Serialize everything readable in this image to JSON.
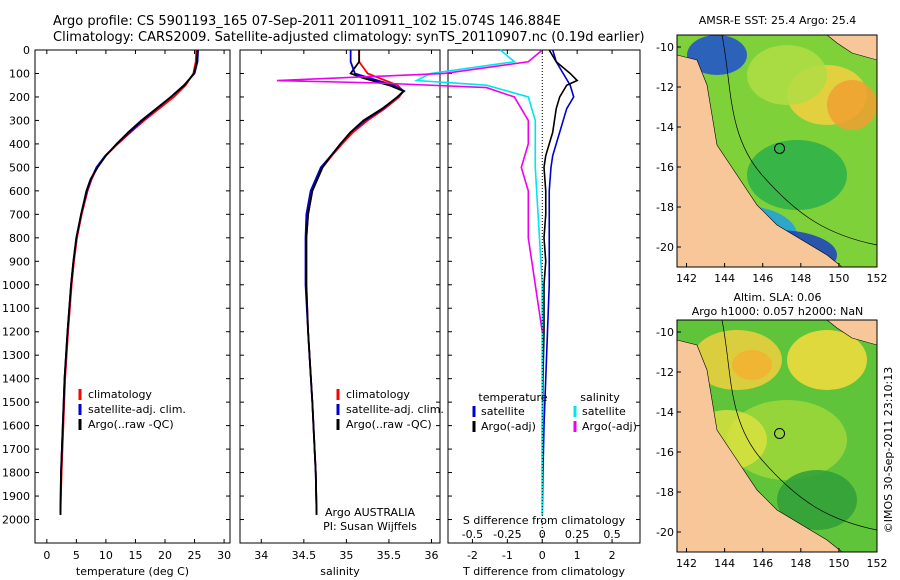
{
  "header": {
    "line1": "Argo profile: CS 5901193_165 07-Sep-2011 20110911_102 15.074S 146.884E",
    "line2": "Climatology: CARS2009. Satellite-adjusted climatology: synTS_20110907.nc (0.19d earlier)"
  },
  "maps": {
    "top_title": "AMSR-E SST: 25.4 Argo: 25.4",
    "bottom_title1": "Altim. SLA: 0.06",
    "bottom_title2": "Argo h1000: 0.057 h2000: NaN",
    "lat_ticks": [
      "-10",
      "-12",
      "-14",
      "-16",
      "-18",
      "-20"
    ],
    "lon_ticks": [
      "142",
      "144",
      "146",
      "148",
      "150",
      "152"
    ],
    "side_label": "©IMOS 30-Sep-2011 23:10:13"
  },
  "colors": {
    "climatology": "#ff0000",
    "satellite": "#0000cc",
    "argo": "#000000",
    "sat_salinity": "#00e5ee",
    "argo_salinity": "#ee00ee",
    "land": "#f7c79a"
  },
  "chart_data": [
    {
      "type": "line",
      "ylabel": "",
      "xlabel": "temperature (deg C)",
      "xlim": [
        -2,
        31
      ],
      "ylim": [
        2100,
        0
      ],
      "x_ticks": [
        "0",
        "5",
        "10",
        "15",
        "20",
        "25",
        "30"
      ],
      "y_ticks": [
        "0",
        "100",
        "200",
        "300",
        "400",
        "500",
        "600",
        "700",
        "800",
        "900",
        "1000",
        "1100",
        "1200",
        "1300",
        "1400",
        "1500",
        "1600",
        "1700",
        "1800",
        "1900",
        "2000"
      ],
      "legend": [
        "climatology",
        "satellite-adj. clim.",
        "Argo(..raw -QC)"
      ],
      "series": [
        {
          "name": "climatology",
          "depth": [
            0,
            50,
            100,
            150,
            200,
            250,
            300,
            350,
            400,
            450,
            500,
            550,
            600,
            700,
            800,
            900,
            1000,
            1200,
            1400,
            1600,
            1800,
            1980
          ],
          "values": [
            25.3,
            25.2,
            24.8,
            23.5,
            21.5,
            19.0,
            16.5,
            14.2,
            12.0,
            10.0,
            8.5,
            7.6,
            6.9,
            5.9,
            5.1,
            4.6,
            4.2,
            3.6,
            3.1,
            2.8,
            2.5,
            2.3
          ]
        },
        {
          "name": "satellite-adj. clim.",
          "depth": [
            0,
            50,
            100,
            150,
            200,
            250,
            300,
            350,
            400,
            450,
            500,
            550,
            600,
            700,
            800,
            900,
            1000,
            1200,
            1400,
            1600,
            1800,
            1980
          ],
          "values": [
            25.6,
            25.5,
            25.0,
            23.2,
            21.0,
            18.6,
            16.2,
            14.0,
            11.9,
            9.9,
            8.4,
            7.5,
            6.8,
            5.8,
            5.0,
            4.5,
            4.1,
            3.5,
            3.0,
            2.7,
            2.4,
            2.3
          ]
        },
        {
          "name": "Argo(..raw -QC)",
          "depth": [
            0,
            50,
            100,
            150,
            200,
            250,
            300,
            350,
            400,
            450,
            500,
            550,
            600,
            700,
            800,
            900,
            1000,
            1200,
            1400,
            1600,
            1800,
            1980
          ],
          "values": [
            25.5,
            25.4,
            24.9,
            23.3,
            21.0,
            18.5,
            16.0,
            13.8,
            11.8,
            10.0,
            8.6,
            7.4,
            6.7,
            5.8,
            5.0,
            4.5,
            4.1,
            3.5,
            3.0,
            2.7,
            2.4,
            2.3
          ]
        }
      ]
    },
    {
      "type": "line",
      "xlabel": "salinity",
      "xlim": [
        33.75,
        36.1
      ],
      "ylim": [
        2100,
        0
      ],
      "x_ticks": [
        "34",
        "34.5",
        "35",
        "35.5",
        "36"
      ],
      "legend": [
        "climatology",
        "satellite-adj. clim.",
        "Argo(..raw -QC)"
      ],
      "annotation1": "Argo AUSTRALIA",
      "annotation2": "PI: Susan Wijffels",
      "series": [
        {
          "name": "climatology",
          "depth": [
            0,
            50,
            100,
            150,
            175,
            200,
            250,
            300,
            350,
            400,
            450,
            500,
            600,
            700,
            800,
            1000,
            1200,
            1500,
            1800,
            1980
          ],
          "values": [
            35.15,
            35.15,
            35.25,
            35.6,
            35.67,
            35.62,
            35.45,
            35.25,
            35.08,
            34.95,
            34.83,
            34.72,
            34.6,
            34.55,
            34.53,
            34.53,
            34.55,
            34.6,
            34.64,
            34.65
          ]
        },
        {
          "name": "satellite-adj. clim.",
          "depth": [
            0,
            50,
            100,
            150,
            175,
            200,
            250,
            300,
            350,
            400,
            450,
            500,
            600,
            700,
            800,
            1000,
            1200,
            1500,
            1800,
            1980
          ],
          "values": [
            35.05,
            35.05,
            35.1,
            35.55,
            35.68,
            35.6,
            35.43,
            35.22,
            35.05,
            34.93,
            34.82,
            34.7,
            34.58,
            34.53,
            34.52,
            34.52,
            34.55,
            34.6,
            34.64,
            34.65
          ]
        },
        {
          "name": "Argo(..raw -QC)",
          "depth": [
            0,
            50,
            100,
            120,
            150,
            175,
            200,
            250,
            300,
            350,
            400,
            450,
            500,
            600,
            700,
            800,
            1000,
            1200,
            1500,
            1800,
            1980
          ],
          "values": [
            35.15,
            35.15,
            35.05,
            35.2,
            35.5,
            35.67,
            35.6,
            35.42,
            35.2,
            35.05,
            34.93,
            34.82,
            34.72,
            34.6,
            34.55,
            34.53,
            34.53,
            34.55,
            34.6,
            34.64,
            34.65
          ]
        }
      ]
    },
    {
      "type": "line",
      "xlabel_top": "S difference from climatology",
      "xlabel": "T difference from climatology",
      "xlim": [
        -2.7,
        2.8
      ],
      "ylim": [
        2100,
        0
      ],
      "x_ticks": [
        "-2",
        "-1",
        "0",
        "1",
        "2"
      ],
      "x_ticks_top": [
        "-0.5",
        "-0.25",
        "0",
        "0.25",
        "0.5"
      ],
      "legend_left_title": "temperature",
      "legend_right_title": "salinity",
      "legend_left": [
        "satellite",
        "Argo(-adj)"
      ],
      "legend_right": [
        "satellite",
        "Argo(-adj)"
      ],
      "series": [
        {
          "name": "temperature satellite",
          "depth": [
            0,
            50,
            100,
            150,
            200,
            250,
            300,
            350,
            400,
            450,
            500,
            600,
            700,
            800,
            900,
            1000,
            1200,
            1400,
            1600,
            1800,
            1980
          ],
          "values": [
            0.3,
            0.4,
            0.6,
            0.8,
            0.9,
            0.7,
            0.6,
            0.5,
            0.4,
            0.3,
            0.25,
            0.2,
            0.2,
            0.2,
            0.2,
            0.2,
            0.15,
            0.1,
            0.05,
            0.02,
            0.0
          ]
        },
        {
          "name": "temperature Argo(-adj)",
          "depth": [
            0,
            50,
            100,
            130,
            150,
            200,
            250,
            300,
            350,
            400,
            450,
            500,
            600,
            700,
            800,
            900,
            1000,
            1200,
            1400,
            1600,
            1800,
            1980
          ],
          "values": [
            0.2,
            0.4,
            0.8,
            1.0,
            0.7,
            0.5,
            0.4,
            0.35,
            0.3,
            0.2,
            0.1,
            0.05,
            0.1,
            0.1,
            0.05,
            0.1,
            0.05,
            0.05,
            0.02,
            0.0,
            0.0,
            0.0
          ]
        },
        {
          "name": "salinity satellite",
          "depth": [
            0,
            50,
            100,
            130,
            150,
            200,
            300,
            400,
            500,
            700,
            1000,
            1200,
            1400,
            1600,
            1800,
            1980
          ],
          "values": [
            -0.3,
            -0.2,
            -0.8,
            -0.9,
            -0.4,
            -0.1,
            -0.05,
            -0.05,
            -0.05,
            -0.03,
            0.0,
            0.0,
            0.0,
            0.0,
            0.0,
            0.0
          ]
        },
        {
          "name": "salinity Argo(-adj)",
          "depth": [
            0,
            50,
            100,
            130,
            140,
            160,
            200,
            300,
            400,
            500,
            600,
            700,
            800,
            1000,
            1200
          ],
          "values": [
            0.0,
            -0.1,
            -0.7,
            -1.9,
            -1.2,
            -0.4,
            -0.2,
            -0.1,
            -0.1,
            -0.15,
            -0.1,
            -0.1,
            -0.1,
            -0.05,
            0.0
          ]
        }
      ]
    }
  ]
}
